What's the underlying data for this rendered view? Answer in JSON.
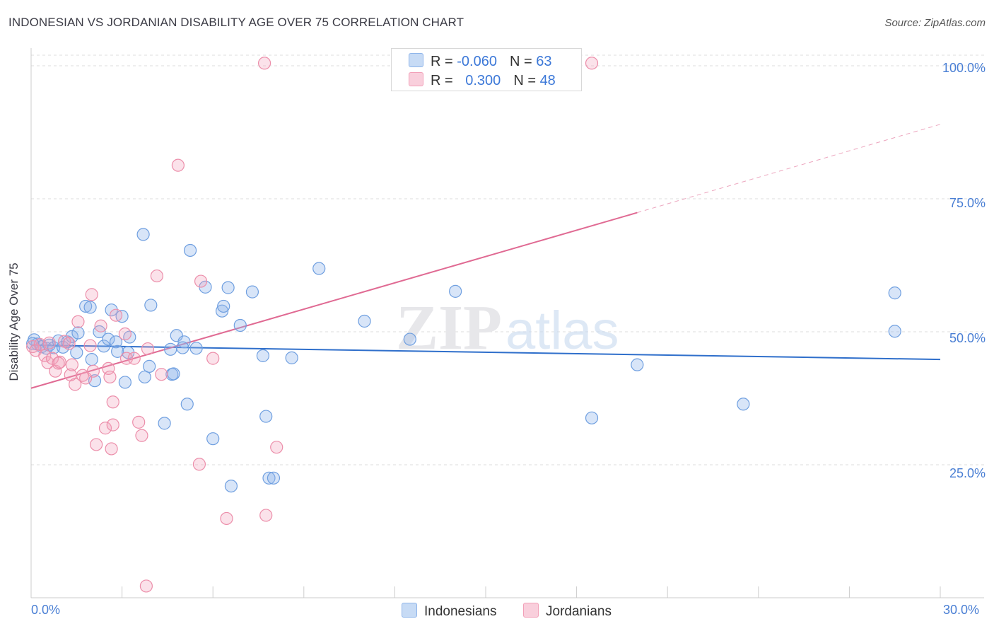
{
  "header": {
    "title": "INDONESIAN VS JORDANIAN DISABILITY AGE OVER 75 CORRELATION CHART",
    "source": "Source: ZipAtlas.com"
  },
  "watermark": "ZIPatlas",
  "colors": {
    "indonesians": "#8fb5ea",
    "indonesians_line": "#2f6fcb",
    "jordanians": "#f2a0b8",
    "jordanians_line": "#e06a93",
    "tick_text": "#4a7fd4",
    "grid": "#dedede"
  },
  "legend_top": {
    "rows": [
      {
        "r_label": "R = ",
        "r_value": "-0.060",
        "n_label": "N = ",
        "n_value": "63"
      },
      {
        "r_label": "R = ",
        "r_value": "0.300",
        "n_label": "N = ",
        "n_value": "48"
      }
    ]
  },
  "chart_data": {
    "type": "scatter",
    "title": "INDONESIAN VS JORDANIAN DISABILITY AGE OVER 75 CORRELATION CHART",
    "xlabel": "",
    "ylabel": "Disability Age Over 75",
    "xlim": [
      0,
      30
    ],
    "ylim": [
      0,
      102
    ],
    "x_tick_labels": [
      "0.0%",
      "30.0%"
    ],
    "y_ticks": [
      25,
      50,
      75,
      100
    ],
    "y_tick_labels": [
      "25.0%",
      "50.0%",
      "75.0%",
      "100.0%"
    ],
    "legend": [
      "Indonesians",
      "Jordanians"
    ],
    "series": [
      {
        "name": "Indonesians",
        "points": [
          [
            0.1,
            48.5
          ],
          [
            0.2,
            47.7
          ],
          [
            0.35,
            47.2
          ],
          [
            0.5,
            46.9
          ],
          [
            0.6,
            47.5
          ],
          [
            0.75,
            47.0
          ],
          [
            0.9,
            48.3
          ],
          [
            1.05,
            47.1
          ],
          [
            1.2,
            48.1
          ],
          [
            1.35,
            49.1
          ],
          [
            1.55,
            49.8
          ],
          [
            1.8,
            54.8
          ],
          [
            1.95,
            54.6
          ],
          [
            2.0,
            44.8
          ],
          [
            2.1,
            40.8
          ],
          [
            2.25,
            50.0
          ],
          [
            2.4,
            47.3
          ],
          [
            2.55,
            48.6
          ],
          [
            2.65,
            54.1
          ],
          [
            2.8,
            48.1
          ],
          [
            2.85,
            46.3
          ],
          [
            3.0,
            52.9
          ],
          [
            3.1,
            40.5
          ],
          [
            3.2,
            46.1
          ],
          [
            3.25,
            49.0
          ],
          [
            3.7,
            68.3
          ],
          [
            3.75,
            41.5
          ],
          [
            3.95,
            55.0
          ],
          [
            3.9,
            43.5
          ],
          [
            4.65,
            42.0
          ],
          [
            4.7,
            42.1
          ],
          [
            4.8,
            49.3
          ],
          [
            5.05,
            48.1
          ],
          [
            5.15,
            36.4
          ],
          [
            5.25,
            65.3
          ],
          [
            5.45,
            46.9
          ],
          [
            5.75,
            58.4
          ],
          [
            6.0,
            29.9
          ],
          [
            6.3,
            53.9
          ],
          [
            6.35,
            54.8
          ],
          [
            6.5,
            58.3
          ],
          [
            6.9,
            51.2
          ],
          [
            7.3,
            57.5
          ],
          [
            7.65,
            45.5
          ],
          [
            7.75,
            34.1
          ],
          [
            7.85,
            22.5
          ],
          [
            8.0,
            22.5
          ],
          [
            5.0,
            47.0
          ],
          [
            6.6,
            21.0
          ],
          [
            8.6,
            45.1
          ],
          [
            9.5,
            61.9
          ],
          [
            11.0,
            52.0
          ],
          [
            12.5,
            48.6
          ],
          [
            14.0,
            57.6
          ],
          [
            4.4,
            32.8
          ],
          [
            4.6,
            46.7
          ],
          [
            18.5,
            33.8
          ],
          [
            20.0,
            43.8
          ],
          [
            23.5,
            36.4
          ],
          [
            28.5,
            50.1
          ],
          [
            28.5,
            57.3
          ],
          [
            1.5,
            46.1
          ],
          [
            0.05,
            47.8
          ]
        ]
      },
      {
        "name": "Jordanians",
        "points": [
          [
            0.05,
            47.2
          ],
          [
            0.15,
            46.5
          ],
          [
            0.3,
            47.6
          ],
          [
            0.45,
            45.5
          ],
          [
            0.55,
            44.2
          ],
          [
            0.7,
            45.0
          ],
          [
            0.8,
            42.6
          ],
          [
            0.95,
            44.3
          ],
          [
            1.1,
            48.2
          ],
          [
            1.25,
            47.8
          ],
          [
            1.35,
            43.8
          ],
          [
            1.45,
            40.1
          ],
          [
            1.55,
            51.9
          ],
          [
            1.7,
            41.8
          ],
          [
            1.8,
            41.3
          ],
          [
            1.95,
            47.4
          ],
          [
            2.05,
            42.6
          ],
          [
            2.15,
            28.8
          ],
          [
            2.3,
            51.1
          ],
          [
            2.45,
            31.9
          ],
          [
            2.55,
            43.1
          ],
          [
            2.6,
            41.5
          ],
          [
            2.65,
            28.0
          ],
          [
            2.7,
            36.8
          ],
          [
            2.8,
            53.1
          ],
          [
            3.1,
            49.6
          ],
          [
            3.15,
            45.0
          ],
          [
            3.4,
            45.0
          ],
          [
            3.55,
            33.0
          ],
          [
            3.65,
            30.5
          ],
          [
            3.85,
            46.8
          ],
          [
            4.15,
            60.5
          ],
          [
            4.3,
            42.0
          ],
          [
            4.85,
            81.3
          ],
          [
            5.55,
            25.1
          ],
          [
            5.6,
            59.5
          ],
          [
            6.0,
            45.0
          ],
          [
            6.45,
            14.9
          ],
          [
            7.7,
            100.5
          ],
          [
            7.75,
            15.5
          ],
          [
            8.1,
            28.3
          ],
          [
            18.5,
            100.5
          ],
          [
            0.9,
            44.1
          ],
          [
            1.3,
            41.9
          ],
          [
            2.0,
            57.0
          ],
          [
            2.7,
            32.5
          ],
          [
            3.8,
            2.2
          ],
          [
            0.6,
            47.9
          ]
        ]
      }
    ],
    "trend_lines": [
      {
        "series": "Indonesians",
        "x": [
          0,
          30
        ],
        "y": [
          47.5,
          44.8
        ],
        "style": "solid"
      },
      {
        "series": "Jordanians",
        "x": [
          0,
          20
        ],
        "y": [
          39.4,
          72.4
        ],
        "style": "solid"
      },
      {
        "series": "Jordanians",
        "x": [
          20,
          30
        ],
        "y": [
          72.4,
          89.0
        ],
        "style": "dashed"
      }
    ]
  }
}
